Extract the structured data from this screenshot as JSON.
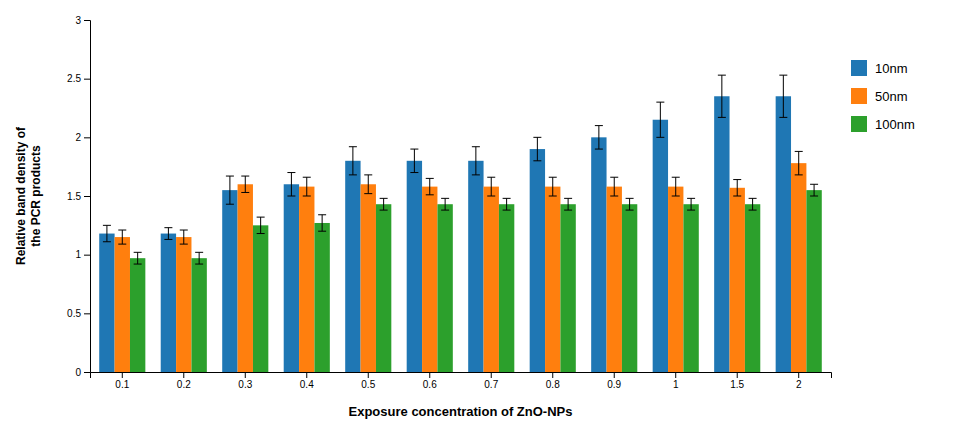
{
  "chart_data": {
    "type": "bar",
    "categories": [
      "0.1",
      "0.2",
      "0.3",
      "0.4",
      "0.5",
      "0.6",
      "0.7",
      "0.8",
      "0.9",
      "1",
      "1.5",
      "2"
    ],
    "series": [
      {
        "name": "10nm",
        "values": [
          1.18,
          1.18,
          1.55,
          1.6,
          1.8,
          1.8,
          1.8,
          1.9,
          2.0,
          2.15,
          2.35,
          2.35
        ],
        "errors": [
          0.07,
          0.05,
          0.12,
          0.1,
          0.12,
          0.1,
          0.12,
          0.1,
          0.1,
          0.15,
          0.18,
          0.18
        ]
      },
      {
        "name": "50nm",
        "values": [
          1.15,
          1.15,
          1.6,
          1.58,
          1.6,
          1.58,
          1.58,
          1.58,
          1.58,
          1.58,
          1.57,
          1.78
        ],
        "errors": [
          0.06,
          0.06,
          0.07,
          0.08,
          0.08,
          0.07,
          0.08,
          0.08,
          0.08,
          0.08,
          0.07,
          0.1
        ]
      },
      {
        "name": "100nm",
        "values": [
          0.97,
          0.97,
          1.25,
          1.27,
          1.43,
          1.43,
          1.43,
          1.43,
          1.43,
          1.43,
          1.43,
          1.55
        ],
        "errors": [
          0.05,
          0.05,
          0.07,
          0.07,
          0.05,
          0.05,
          0.05,
          0.05,
          0.05,
          0.05,
          0.05,
          0.05
        ]
      }
    ],
    "xlabel": "Exposure concentration of ZnO-NPs",
    "ylabel": "Relative band density of\nthe PCR products",
    "ylim": [
      0,
      3
    ],
    "yticks": [
      0,
      0.5,
      1,
      1.5,
      2,
      2.5,
      3
    ],
    "grid": false,
    "legend": "right"
  }
}
